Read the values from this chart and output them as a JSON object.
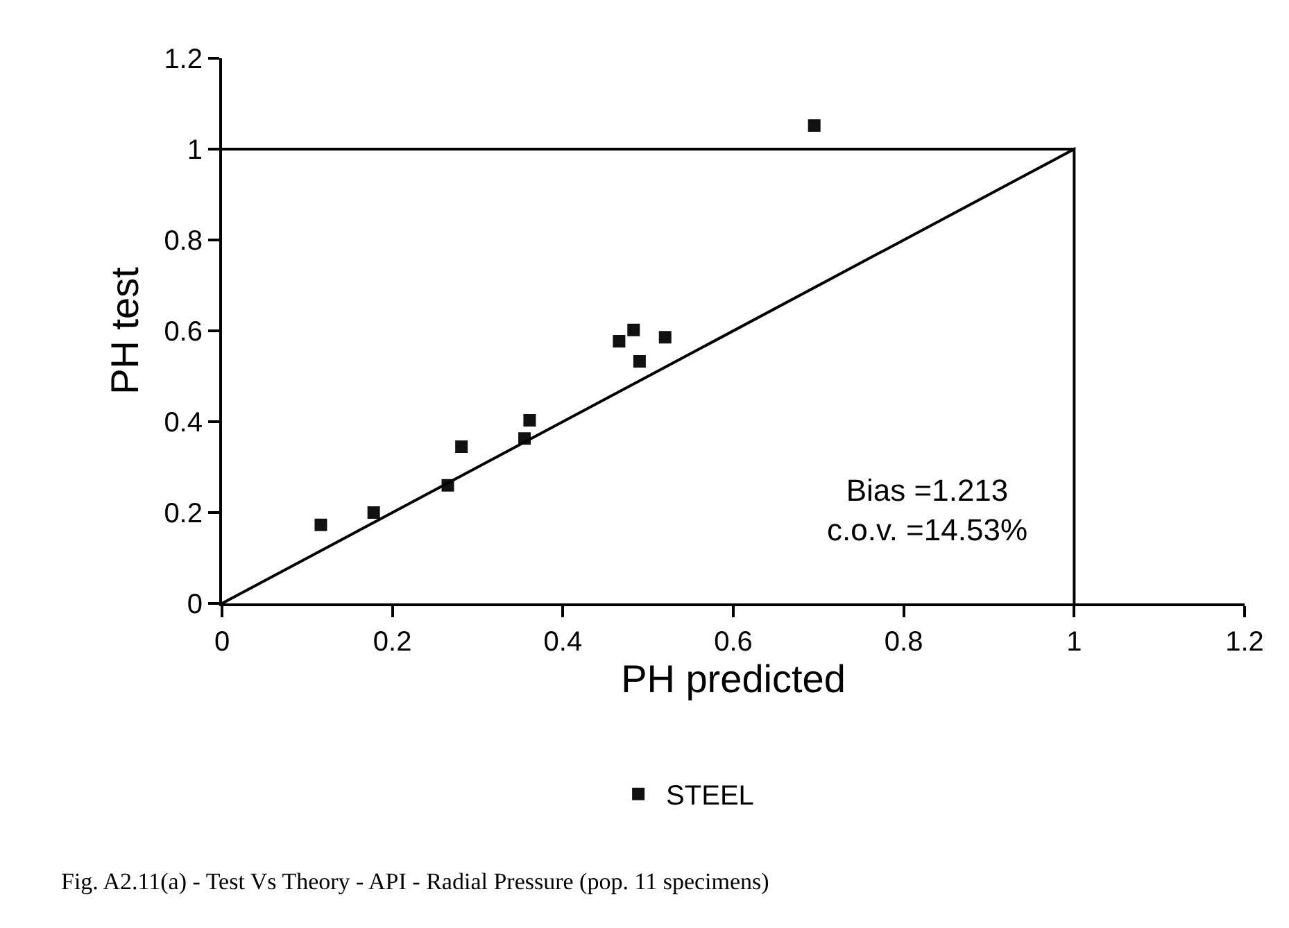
{
  "chart_data": {
    "type": "scatter",
    "xlabel": "PH predicted",
    "ylabel": "PH test",
    "annotations": [
      "Bias =1.213\nc.o.v. =14.53%",
      "Fig. A2.11(a) - Test Vs Theory - API - Radial Pressure (pop. 11 specimens)"
    ],
    "series": [
      {
        "name": "STEEL",
        "color": "#111111",
        "marker": "square",
        "x": [
          0.116,
          0.178,
          0.265,
          0.281,
          0.355,
          0.361,
          0.466,
          0.483,
          0.49,
          0.52,
          0.695
        ],
        "values": [
          0.173,
          0.2,
          0.26,
          0.345,
          0.363,
          0.403,
          0.577,
          0.602,
          0.533,
          0.586,
          1.052
        ]
      },
      {
        "type": "line",
        "color": "#000000",
        "marker": "none",
        "x": [
          0,
          1,
          1
        ],
        "values": [
          0,
          1,
          0
        ]
      },
      {
        "type": "line",
        "color": "#000000",
        "marker": "none",
        "x": [
          0,
          1
        ],
        "values": [
          1,
          1
        ]
      }
    ],
    "xlim": [
      0,
      1.2
    ],
    "xticks": [
      0,
      0.2,
      0.4,
      0.6,
      0.8,
      1,
      1.2
    ],
    "ylim": [
      0,
      1.2
    ],
    "yticks": [
      0,
      0.2,
      0.4,
      0.6,
      0.8,
      1,
      1.2
    ],
    "legend": "bottom",
    "line_style": "solid"
  }
}
